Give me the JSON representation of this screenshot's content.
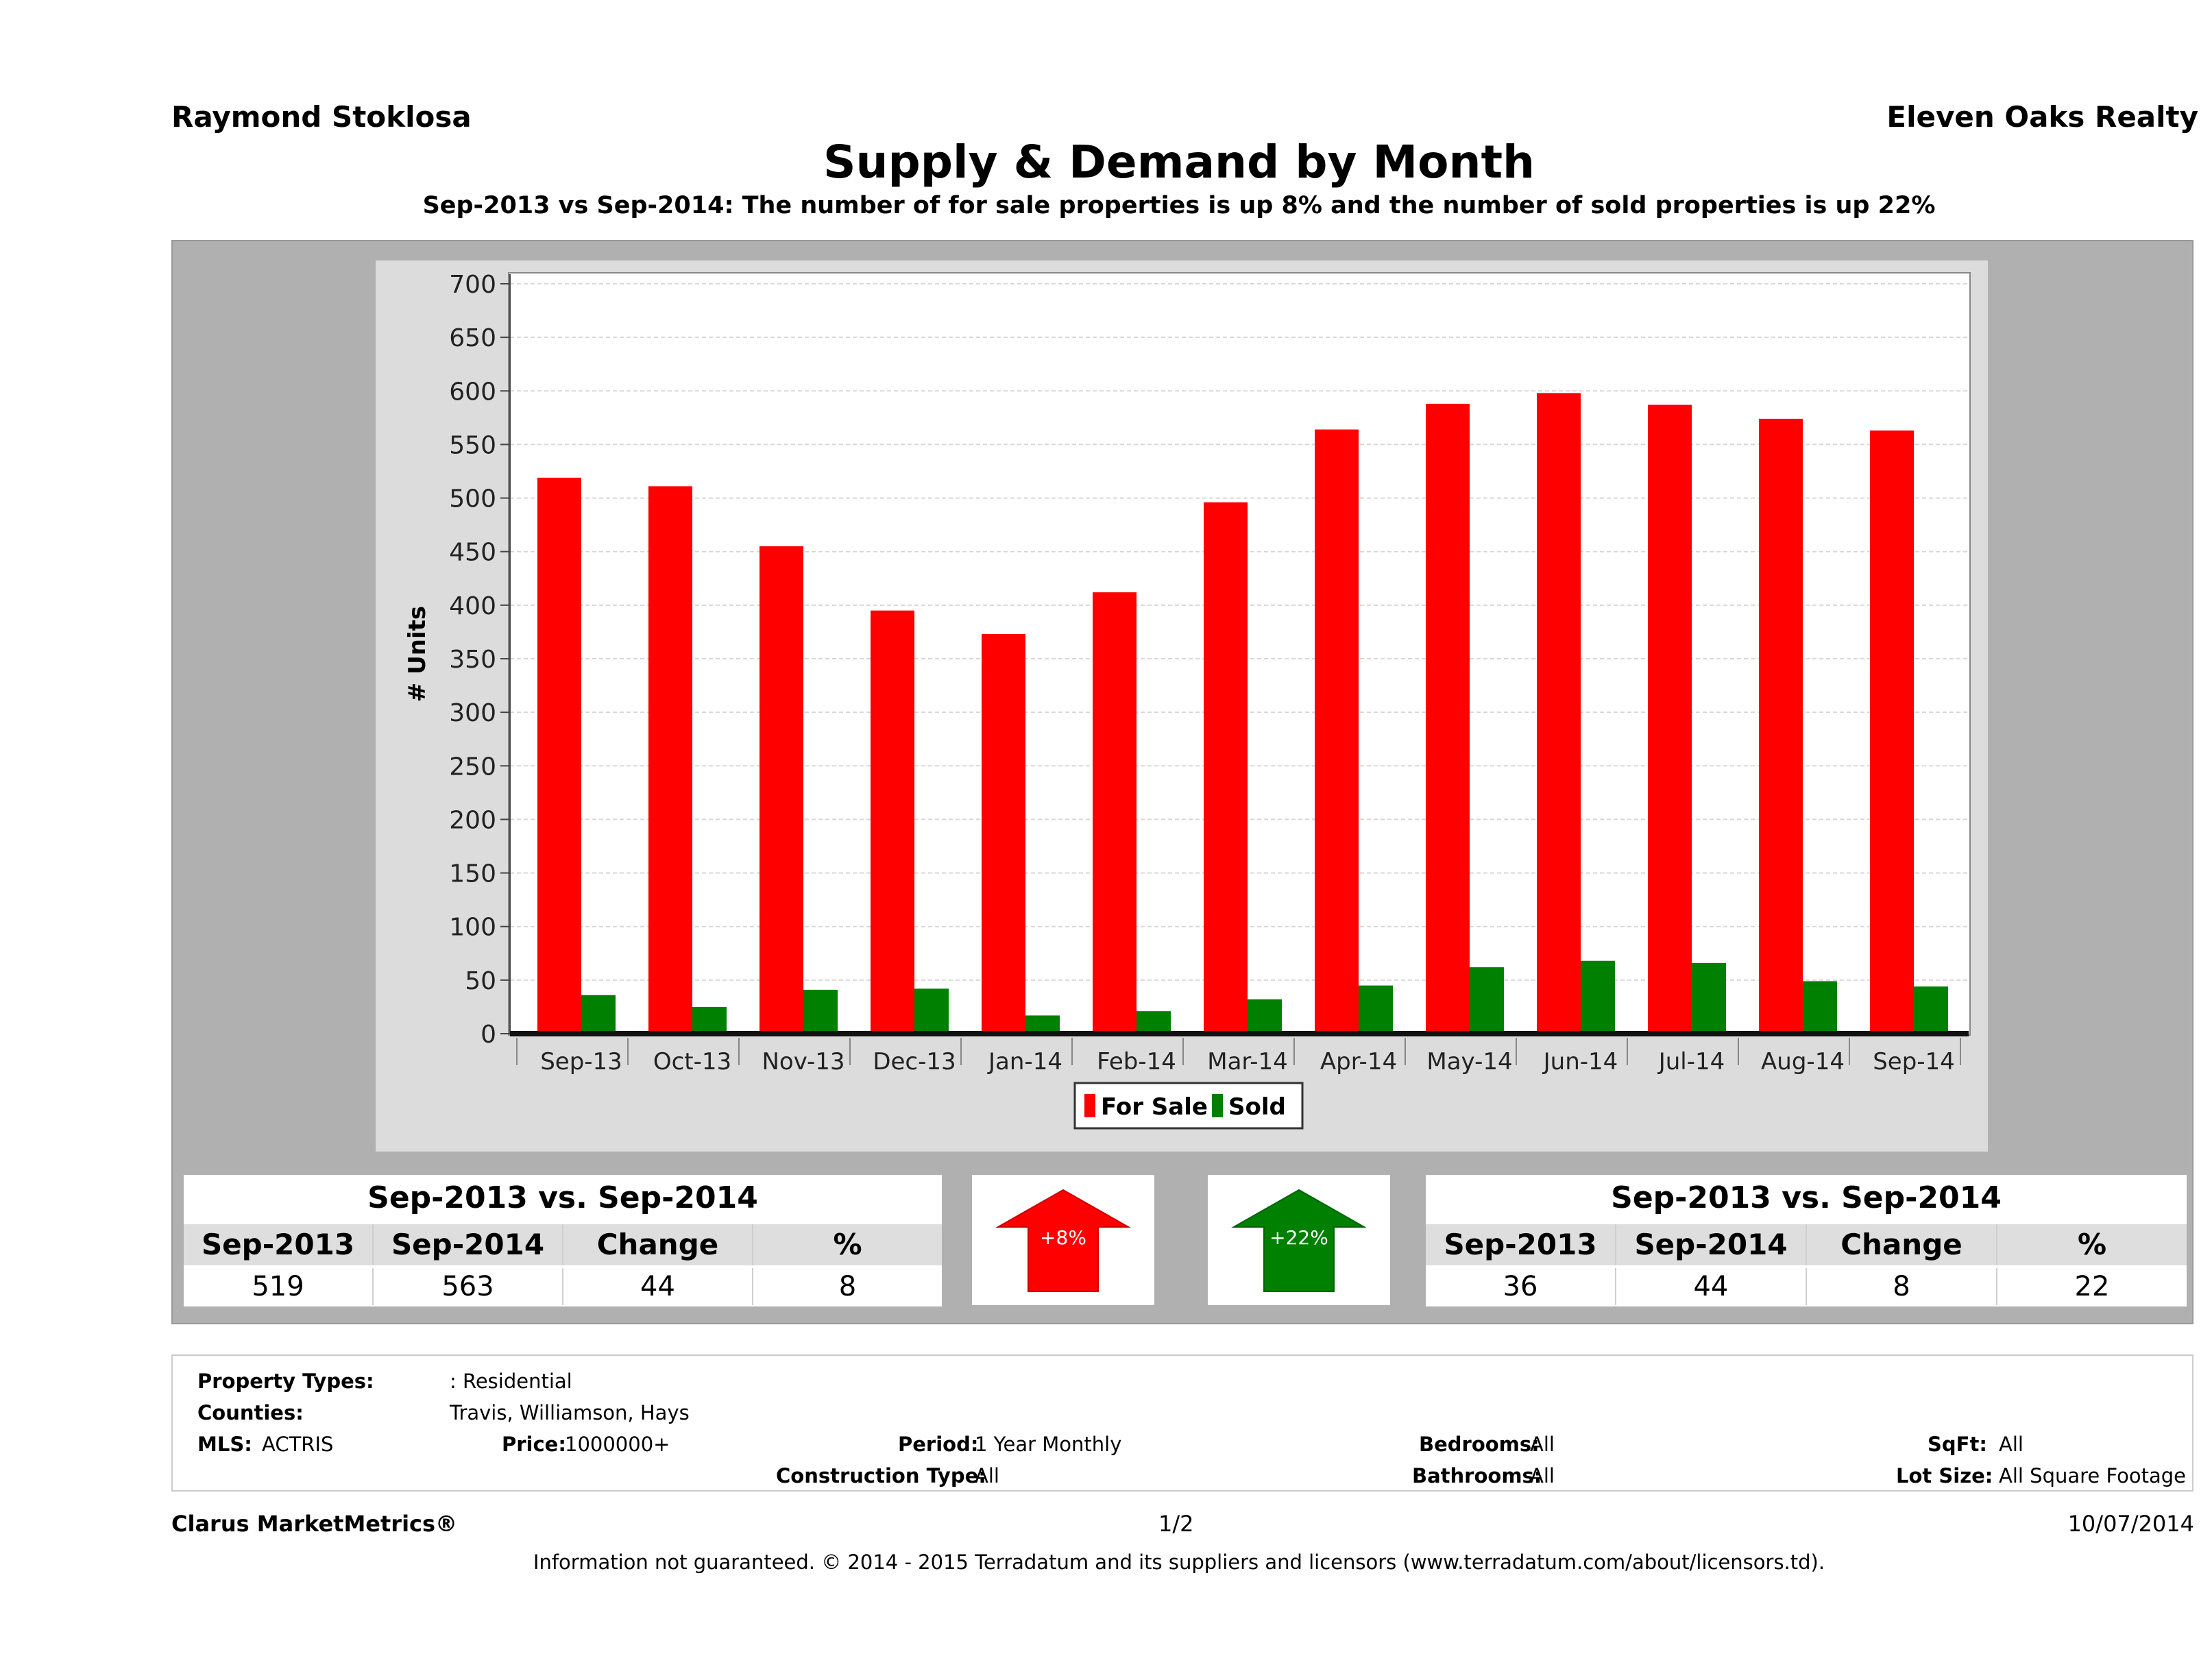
{
  "header": {
    "agent": "Raymond Stoklosa",
    "company": "Eleven Oaks Realty",
    "title": "Supply & Demand by Month",
    "subtitle": "Sep-2013 vs Sep-2014: The number of for sale properties is up 8% and the number of sold properties is up 22%"
  },
  "chart_data": {
    "type": "bar",
    "categories": [
      "Sep-13",
      "Oct-13",
      "Nov-13",
      "Dec-13",
      "Jan-14",
      "Feb-14",
      "Mar-14",
      "Apr-14",
      "May-14",
      "Jun-14",
      "Jul-14",
      "Aug-14",
      "Sep-14"
    ],
    "series": [
      {
        "name": "For Sale",
        "color": "#ff0000",
        "values": [
          519,
          511,
          455,
          395,
          373,
          412,
          496,
          564,
          588,
          598,
          587,
          574,
          563
        ]
      },
      {
        "name": "Sold",
        "color": "#008000",
        "values": [
          36,
          25,
          41,
          42,
          17,
          21,
          32,
          45,
          62,
          68,
          66,
          49,
          44
        ]
      }
    ],
    "ylabel": "# Units",
    "xlabel": "",
    "ylim": [
      0,
      700
    ],
    "yticks": [
      "0",
      "50",
      "100",
      "150",
      "200",
      "250",
      "300",
      "350",
      "400",
      "450",
      "500",
      "550",
      "600",
      "650",
      "700"
    ],
    "legend": "bottom"
  },
  "for_sale_stats": {
    "heading": "Sep-2013 vs. Sep-2014",
    "columns": [
      "Sep-2013",
      "Sep-2014",
      "Change",
      "%"
    ],
    "values": [
      "519",
      "563",
      "44",
      "8"
    ],
    "arrow_label": "+8%",
    "arrow_color": "#ff0000"
  },
  "sold_stats": {
    "heading": "Sep-2013 vs. Sep-2014",
    "columns": [
      "Sep-2013",
      "Sep-2014",
      "Change",
      "%"
    ],
    "values": [
      "36",
      "44",
      "8",
      "22"
    ],
    "arrow_label": "+22%",
    "arrow_color": "#008000"
  },
  "criteria": {
    "property_types_label": "Property Types:",
    "property_types_value": ": Residential",
    "counties_label": "Counties:",
    "counties_value": "Travis, Williamson, Hays",
    "mls_label": "MLS:",
    "mls_value": "ACTRIS",
    "price_label": "Price:",
    "price_value": "1000000+",
    "period_label": "Period:",
    "period_value": "1 Year Monthly",
    "construction_label": "Construction Type:",
    "construction_value": "All",
    "bedrooms_label": "Bedrooms:",
    "bedrooms_value": "All",
    "bathrooms_label": "Bathrooms:",
    "bathrooms_value": "All",
    "sqft_label": "SqFt:",
    "sqft_value": "All",
    "lotsize_label": "Lot Size:",
    "lotsize_value": "All Square Footage"
  },
  "footer": {
    "brand": "Clarus MarketMetrics®",
    "page": "1/2",
    "date": "10/07/2014",
    "disclaimer": "Information not guaranteed. © 2014 - 2015 Terradatum and its suppliers and licensors (www.terradatum.com/about/licensors.td)."
  }
}
